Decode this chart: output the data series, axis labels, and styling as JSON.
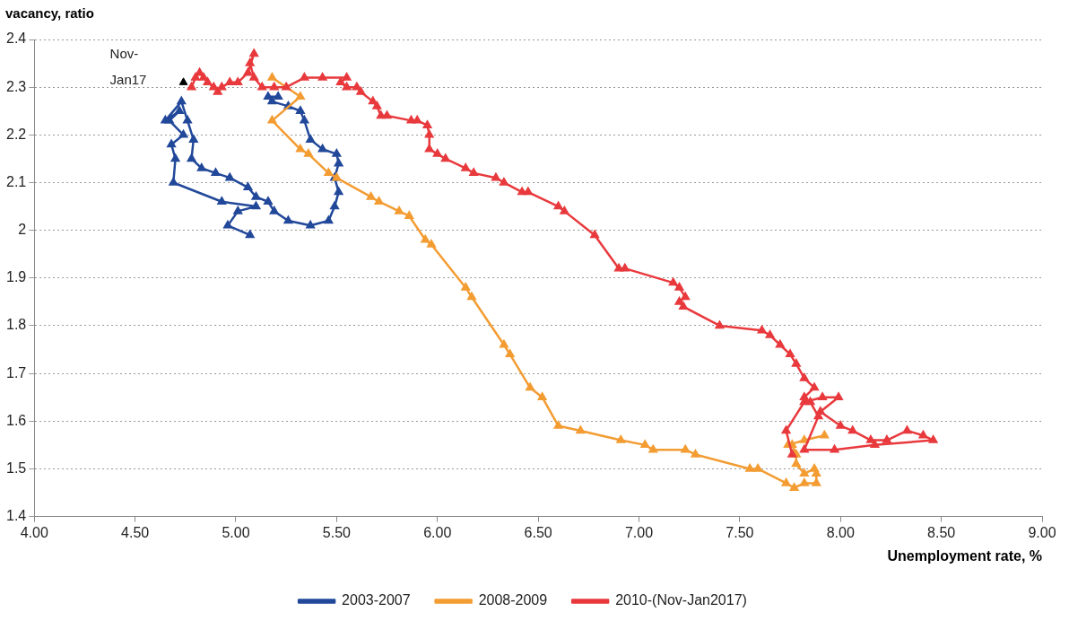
{
  "chart_data": {
    "type": "line",
    "ylabel": "vacancy, ratio",
    "xlabel": "Unemployment rate, %",
    "xlim": [
      4,
      9
    ],
    "xticks": [
      {
        "value": 4,
        "label": "4.00"
      },
      {
        "value": 4.5,
        "label": "4.50"
      },
      {
        "value": 5,
        "label": "5.00"
      },
      {
        "value": 5.5,
        "label": "5.50"
      },
      {
        "value": 6,
        "label": "6.00"
      },
      {
        "value": 6.5,
        "label": "6.50"
      },
      {
        "value": 7,
        "label": "7.00"
      },
      {
        "value": 7.5,
        "label": "7.50"
      },
      {
        "value": 8,
        "label": "8.00"
      },
      {
        "value": 8.5,
        "label": "8.50"
      },
      {
        "value": 9,
        "label": "9.00"
      }
    ],
    "ylim": [
      1.4,
      2.4
    ],
    "yticks": [
      1.4,
      1.5,
      1.6,
      1.7,
      1.8,
      1.9,
      2,
      2.1,
      2.2,
      2.3,
      2.4
    ],
    "grid": "y",
    "legend": "bottom",
    "marker": "triangle",
    "line_style": "solid",
    "annotations": [
      {
        "text": "Nov-Jan17",
        "x": 4.74,
        "y": 2.31
      }
    ],
    "series": [
      {
        "name": "2003-2007",
        "color": "#22489a",
        "x": [
          5.07,
          4.96,
          5.01,
          5.1,
          4.93,
          4.69,
          4.7,
          4.68,
          4.74,
          4.67,
          4.72,
          4.65,
          4.73,
          4.76,
          4.79,
          4.78,
          4.83,
          4.9,
          4.97,
          5.06,
          5.1,
          5.16,
          5.19,
          5.26,
          5.37,
          5.46,
          5.49,
          5.51,
          5.49,
          5.51,
          5.5,
          5.43,
          5.37,
          5.34,
          5.32,
          5.26,
          5.18,
          5.16,
          5.21
        ],
        "values": [
          1.99,
          2.01,
          2.04,
          2.05,
          2.06,
          2.1,
          2.15,
          2.18,
          2.2,
          2.23,
          2.25,
          2.23,
          2.27,
          2.23,
          2.19,
          2.15,
          2.13,
          2.12,
          2.11,
          2.09,
          2.07,
          2.06,
          2.04,
          2.02,
          2.01,
          2.02,
          2.05,
          2.08,
          2.11,
          2.14,
          2.16,
          2.17,
          2.19,
          2.23,
          2.25,
          2.26,
          2.27,
          2.28,
          2.28
        ]
      },
      {
        "name": "2008-2009",
        "color": "#f39c32",
        "x": [
          5.18,
          5.32,
          5.18,
          5.32,
          5.36,
          5.46,
          5.5,
          5.67,
          5.71,
          5.81,
          5.86,
          5.94,
          5.97,
          6.14,
          6.17,
          6.33,
          6.36,
          6.46,
          6.52,
          6.6,
          6.71,
          6.91,
          7.03,
          7.07,
          7.23,
          7.28,
          7.55,
          7.59,
          7.73,
          7.77,
          7.82,
          7.88,
          7.88,
          7.87,
          7.82,
          7.78,
          7.78,
          7.76,
          7.74,
          7.82,
          7.92
        ],
        "values": [
          2.32,
          2.28,
          2.23,
          2.17,
          2.16,
          2.12,
          2.11,
          2.07,
          2.06,
          2.04,
          2.03,
          1.98,
          1.97,
          1.88,
          1.86,
          1.76,
          1.74,
          1.67,
          1.65,
          1.59,
          1.58,
          1.56,
          1.55,
          1.54,
          1.54,
          1.53,
          1.5,
          1.5,
          1.47,
          1.46,
          1.47,
          1.47,
          1.49,
          1.5,
          1.49,
          1.51,
          1.53,
          1.55,
          1.55,
          1.56,
          1.57
        ]
      },
      {
        "name": "2010-(Nov-Jan2017)",
        "color": "#e8393d",
        "x": [
          7.76,
          7.73,
          7.82,
          7.91,
          7.99,
          7.9,
          8.0,
          8.06,
          8.15,
          8.23,
          8.33,
          8.41,
          8.46,
          8.17,
          7.97,
          7.82,
          7.89,
          7.85,
          7.82,
          7.87,
          7.82,
          7.78,
          7.75,
          7.7,
          7.65,
          7.61,
          7.4,
          7.22,
          7.2,
          7.23,
          7.2,
          7.17,
          6.93,
          6.9,
          6.78,
          6.63,
          6.6,
          6.45,
          6.42,
          6.33,
          6.29,
          6.18,
          6.14,
          6.04,
          6.0,
          5.96,
          5.96,
          5.95,
          5.9,
          5.87,
          5.75,
          5.72,
          5.7,
          5.68,
          5.62,
          5.6,
          5.55,
          5.52,
          5.55,
          5.43,
          5.34,
          5.25,
          5.19,
          5.13,
          5.09,
          5.07,
          5.09,
          5.06,
          5.01,
          4.97,
          4.93,
          4.91,
          4.89,
          4.86,
          4.84,
          4.82,
          4.8,
          4.78
        ],
        "values": [
          1.53,
          1.58,
          1.64,
          1.65,
          1.65,
          1.62,
          1.59,
          1.58,
          1.56,
          1.56,
          1.58,
          1.57,
          1.56,
          1.55,
          1.54,
          1.54,
          1.61,
          1.64,
          1.65,
          1.67,
          1.69,
          1.72,
          1.74,
          1.76,
          1.78,
          1.79,
          1.8,
          1.84,
          1.85,
          1.86,
          1.88,
          1.89,
          1.92,
          1.92,
          1.99,
          2.04,
          2.05,
          2.08,
          2.08,
          2.1,
          2.11,
          2.12,
          2.13,
          2.15,
          2.16,
          2.17,
          2.2,
          2.22,
          2.23,
          2.23,
          2.24,
          2.24,
          2.26,
          2.27,
          2.29,
          2.3,
          2.3,
          2.31,
          2.32,
          2.32,
          2.32,
          2.3,
          2.3,
          2.3,
          2.32,
          2.35,
          2.37,
          2.33,
          2.31,
          2.31,
          2.3,
          2.29,
          2.3,
          2.31,
          2.32,
          2.33,
          2.32,
          2.3
        ]
      },
      {
        "type": "scatter",
        "color": "#000000",
        "x": [
          4.74
        ],
        "values": [
          2.31
        ]
      }
    ]
  }
}
